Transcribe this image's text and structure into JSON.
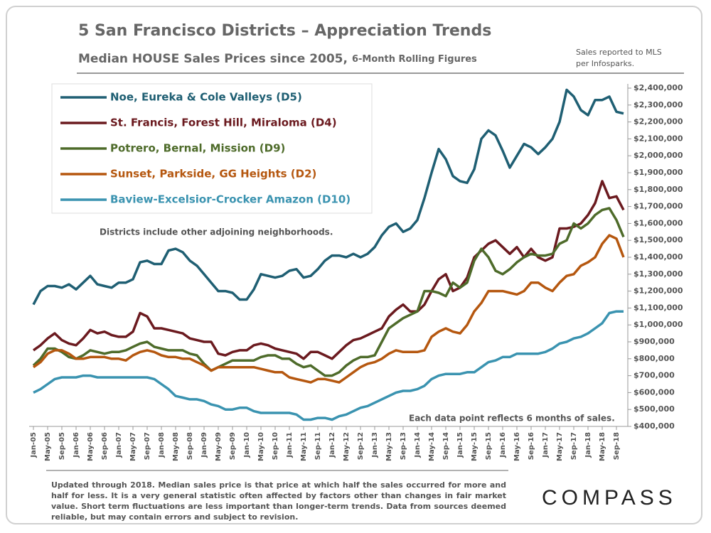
{
  "title": "5 San Francisco Districts – Appreciation Trends",
  "subtitle": "Median HOUSE Sales Prices since 2005,",
  "subtitle_note": "6-Month Rolling Figures",
  "source_lines": [
    "Sales reported to MLS",
    "per Infosparks."
  ],
  "footnote": "Updated through 2018. Median sales price is that price at which half the sales occurred for more and half for less. It is a very general statistic often affected by factors other than changes in fair market value. Short term fluctuations are less important than longer-term trends. Data from sources deemed reliable, but may contain errors and subject to revision.",
  "logo": "COMPASS",
  "chart_data": {
    "type": "line",
    "legend": "upper left",
    "annotations": [
      "Districts include other adjoining neighborhoods.",
      "Each data point reflects 6 months of sales."
    ],
    "categories": [
      "Jan-05",
      null,
      "May-05",
      null,
      "Sep-05",
      null,
      "Jan-06",
      null,
      "May-06",
      null,
      "Sep-06",
      null,
      "Jan-07",
      null,
      "May-07",
      null,
      "Sep-07",
      null,
      "Jan-08",
      null,
      "May-08",
      null,
      "Sep-08",
      null,
      "Jan-09",
      null,
      "May-09",
      null,
      "Sep-09",
      null,
      "Jan-10",
      null,
      "May-10",
      null,
      "Sep-10",
      null,
      "Jan-11",
      null,
      "May-11",
      null,
      "Sep-11",
      null,
      "Jan-12",
      null,
      "May-12",
      null,
      "Sep-12",
      null,
      "Jan-13",
      null,
      "May-13",
      null,
      "Sep-13",
      null,
      "Jan-14",
      null,
      "May-14",
      null,
      "Sep-14",
      null,
      "Jan-15",
      null,
      "May-15",
      null,
      "Sep-15",
      null,
      "Jan-16",
      null,
      "May-16",
      null,
      "Sep-16",
      null,
      "Jan-17",
      null,
      "May-17",
      null,
      "Sep-17",
      null,
      "Jan-18",
      null,
      "May-18",
      null,
      "Sep-18",
      null
    ],
    "ylim": [
      400000,
      2400000
    ],
    "yticks": [
      {
        "value": 400000,
        "label": "$400,000"
      },
      {
        "value": 500000,
        "label": "$500,000"
      },
      {
        "value": 600000,
        "label": "$600,000"
      },
      {
        "value": 700000,
        "label": "$700,000"
      },
      {
        "value": 800000,
        "label": "$800,000"
      },
      {
        "value": 900000,
        "label": "$900,000"
      },
      {
        "value": 1000000,
        "label": "$1,000,000"
      },
      {
        "value": 1100000,
        "label": "$1,100,000"
      },
      {
        "value": 1200000,
        "label": "$1,200,000"
      },
      {
        "value": 1300000,
        "label": "$1,300,000"
      },
      {
        "value": 1400000,
        "label": "$1,400,000"
      },
      {
        "value": 1500000,
        "label": "$1,500,000"
      },
      {
        "value": 1600000,
        "label": "$1,600,000"
      },
      {
        "value": 1700000,
        "label": "$1,700,000"
      },
      {
        "value": 1800000,
        "label": "$1,800,000"
      },
      {
        "value": 1900000,
        "label": "$1,900,000"
      },
      {
        "value": 2000000,
        "label": "$2,000,000"
      },
      {
        "value": 2100000,
        "label": "$2,100,000"
      },
      {
        "value": 2200000,
        "label": "$2,200,000"
      },
      {
        "value": 2300000,
        "label": "$2,300,000"
      },
      {
        "value": 2400000,
        "label": "$2,400,000"
      }
    ],
    "series": [
      {
        "name": "Noe, Eureka & Cole Valleys (D5)",
        "color": "#1f5f73",
        "values": [
          1120000,
          1200000,
          1230000,
          1230000,
          1220000,
          1240000,
          1210000,
          1250000,
          1290000,
          1240000,
          1230000,
          1220000,
          1250000,
          1250000,
          1270000,
          1370000,
          1380000,
          1360000,
          1360000,
          1440000,
          1450000,
          1430000,
          1380000,
          1350000,
          1300000,
          1250000,
          1200000,
          1200000,
          1190000,
          1150000,
          1150000,
          1210000,
          1300000,
          1290000,
          1280000,
          1290000,
          1320000,
          1330000,
          1280000,
          1290000,
          1330000,
          1380000,
          1410000,
          1410000,
          1400000,
          1420000,
          1400000,
          1420000,
          1460000,
          1530000,
          1580000,
          1600000,
          1550000,
          1570000,
          1620000,
          1750000,
          1900000,
          2040000,
          1980000,
          1880000,
          1850000,
          1840000,
          1920000,
          2100000,
          2150000,
          2120000,
          2030000,
          1930000,
          2000000,
          2070000,
          2050000,
          2010000,
          2050000,
          2100000,
          2200000,
          2390000,
          2350000,
          2270000,
          2240000,
          2330000,
          2330000,
          2350000,
          2260000,
          2250000
        ]
      },
      {
        "name": "St. Francis, Forest Hill, Miraloma (D4)",
        "color": "#6b1a1f",
        "values": [
          850000,
          880000,
          920000,
          950000,
          910000,
          890000,
          880000,
          920000,
          970000,
          950000,
          960000,
          940000,
          930000,
          930000,
          960000,
          1070000,
          1050000,
          980000,
          980000,
          970000,
          960000,
          950000,
          920000,
          910000,
          900000,
          900000,
          830000,
          820000,
          840000,
          850000,
          850000,
          880000,
          890000,
          880000,
          860000,
          850000,
          840000,
          830000,
          800000,
          840000,
          840000,
          820000,
          800000,
          840000,
          880000,
          910000,
          920000,
          940000,
          960000,
          980000,
          1050000,
          1090000,
          1120000,
          1080000,
          1080000,
          1120000,
          1200000,
          1270000,
          1300000,
          1200000,
          1220000,
          1280000,
          1400000,
          1440000,
          1480000,
          1500000,
          1460000,
          1420000,
          1460000,
          1400000,
          1450000,
          1400000,
          1380000,
          1400000,
          1570000,
          1570000,
          1580000,
          1600000,
          1650000,
          1720000,
          1850000,
          1750000,
          1760000,
          1680000
        ]
      },
      {
        "name": "Potrero, Bernal, Mission (D9)",
        "color": "#4e6b2a",
        "values": [
          760000,
          800000,
          860000,
          860000,
          840000,
          810000,
          800000,
          820000,
          850000,
          840000,
          830000,
          840000,
          840000,
          850000,
          870000,
          890000,
          900000,
          870000,
          860000,
          850000,
          850000,
          850000,
          830000,
          820000,
          770000,
          730000,
          750000,
          770000,
          790000,
          790000,
          790000,
          790000,
          810000,
          820000,
          820000,
          800000,
          800000,
          770000,
          750000,
          760000,
          730000,
          700000,
          700000,
          720000,
          760000,
          790000,
          810000,
          810000,
          820000,
          900000,
          980000,
          1010000,
          1040000,
          1060000,
          1080000,
          1200000,
          1200000,
          1190000,
          1170000,
          1250000,
          1220000,
          1250000,
          1380000,
          1450000,
          1400000,
          1320000,
          1300000,
          1330000,
          1370000,
          1400000,
          1420000,
          1410000,
          1410000,
          1420000,
          1480000,
          1500000,
          1600000,
          1570000,
          1600000,
          1650000,
          1680000,
          1690000,
          1620000,
          1520000
        ]
      },
      {
        "name": "Sunset, Parkside, GG Heights (D2)",
        "color": "#b5570f",
        "values": [
          750000,
          780000,
          830000,
          850000,
          850000,
          830000,
          800000,
          800000,
          810000,
          810000,
          810000,
          800000,
          800000,
          790000,
          820000,
          840000,
          850000,
          840000,
          820000,
          810000,
          810000,
          800000,
          800000,
          780000,
          760000,
          730000,
          750000,
          750000,
          750000,
          750000,
          750000,
          750000,
          740000,
          730000,
          720000,
          720000,
          690000,
          680000,
          670000,
          660000,
          680000,
          680000,
          670000,
          660000,
          690000,
          720000,
          750000,
          770000,
          780000,
          800000,
          830000,
          850000,
          840000,
          840000,
          840000,
          850000,
          930000,
          960000,
          980000,
          960000,
          950000,
          1000000,
          1080000,
          1130000,
          1200000,
          1200000,
          1200000,
          1190000,
          1180000,
          1200000,
          1250000,
          1250000,
          1220000,
          1200000,
          1250000,
          1290000,
          1300000,
          1350000,
          1370000,
          1400000,
          1480000,
          1530000,
          1510000,
          1400000
        ]
      },
      {
        "name": "Baview-Excelsior-Crocker Amazon (D10)",
        "color": "#3a93b0",
        "values": [
          600000,
          620000,
          650000,
          680000,
          690000,
          690000,
          690000,
          700000,
          700000,
          690000,
          690000,
          690000,
          690000,
          690000,
          690000,
          690000,
          690000,
          680000,
          650000,
          620000,
          580000,
          570000,
          560000,
          560000,
          550000,
          530000,
          520000,
          500000,
          500000,
          510000,
          510000,
          490000,
          480000,
          480000,
          480000,
          480000,
          480000,
          470000,
          440000,
          440000,
          450000,
          450000,
          440000,
          460000,
          470000,
          490000,
          510000,
          520000,
          540000,
          560000,
          580000,
          600000,
          610000,
          610000,
          620000,
          640000,
          680000,
          700000,
          710000,
          710000,
          710000,
          720000,
          720000,
          750000,
          780000,
          790000,
          810000,
          810000,
          830000,
          830000,
          830000,
          830000,
          840000,
          860000,
          890000,
          900000,
          920000,
          930000,
          950000,
          980000,
          1010000,
          1070000,
          1080000,
          1080000
        ]
      }
    ]
  }
}
